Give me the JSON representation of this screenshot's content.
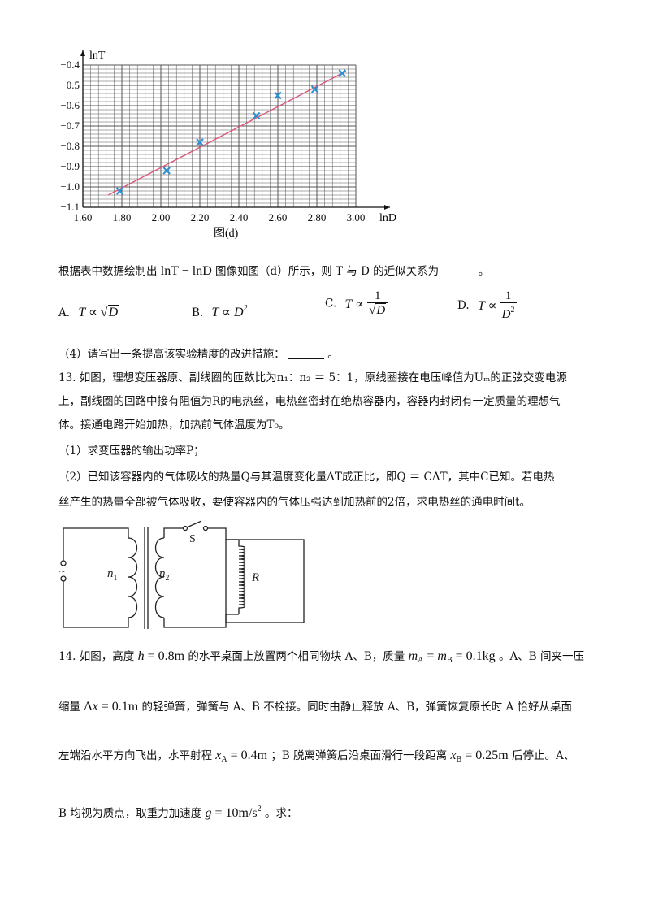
{
  "chart_data": {
    "type": "scatter",
    "title": "",
    "caption": "图(d)",
    "xlabel": "lnD",
    "ylabel": "lnT",
    "xlim": [
      1.6,
      3.0
    ],
    "ylim": [
      -1.1,
      -0.4
    ],
    "xticks": [
      "1.60",
      "1.80",
      "2.00",
      "2.20",
      "2.40",
      "2.60",
      "2.80",
      "3.00"
    ],
    "yticks": [
      "−0.4",
      "−0.5",
      "−0.6",
      "−0.7",
      "−0.8",
      "−0.9",
      "−1.0",
      "−1.1"
    ],
    "xtick_values": [
      1.6,
      1.8,
      2.0,
      2.2,
      2.4,
      2.6,
      2.8,
      3.0
    ],
    "ytick_values": [
      -0.4,
      -0.5,
      -0.6,
      -0.7,
      -0.8,
      -0.9,
      -1.0,
      -1.1
    ],
    "grid": true,
    "points": [
      {
        "x": 1.79,
        "y": -1.02
      },
      {
        "x": 2.03,
        "y": -0.92
      },
      {
        "x": 2.2,
        "y": -0.78
      },
      {
        "x": 2.49,
        "y": -0.65
      },
      {
        "x": 2.6,
        "y": -0.55
      },
      {
        "x": 2.79,
        "y": -0.52
      },
      {
        "x": 2.93,
        "y": -0.44
      }
    ],
    "fit_line": {
      "x": [
        1.73,
        2.95
      ],
      "y": [
        -1.04,
        -0.43
      ]
    },
    "colors": {
      "point": "#2a8fd4",
      "line": "#d8577a",
      "grid": "#555555"
    }
  },
  "q12": {
    "stem_a": "根据表中数据绘制出",
    "stem_math": "lnT − lnD",
    "stem_b": "图像如图（d）所示，则 T 与 D 的近似关系为",
    "stem_end": "。",
    "options": [
      {
        "label": "A.",
        "expr": "T ∝ √D"
      },
      {
        "label": "B.",
        "expr": "T ∝ D²"
      },
      {
        "label": "C.",
        "expr": "T ∝ 1/√D"
      },
      {
        "label": "D.",
        "expr": "T ∝ 1/D²"
      }
    ],
    "part4": "（4）请写出一条提高该实验精度的改进措施：",
    "part4_end": "。"
  },
  "q13": {
    "line1": "13. 如图，理想变压器原、副线圈的匝数比为n₁：n₂ ＝ 5：1，原线圈接在电压峰值为Uₘ的正弦交变电源",
    "line2": "上，副线圈的回路中接有阻值为R的电热丝，电热丝密封在绝热容器内，容器内封闭有一定质量的理想气",
    "line3": "体。接通电路开始加热，加热前气体温度为T₀。",
    "line4": "（1）求变压器的输出功率P；",
    "line5": "（2）已知该容器内的气体吸收的热量Q与其温度变化量ΔT成正比，即Q ＝ CΔT，其中C已知。若电热",
    "line6": "丝产生的热量全部被气体吸收，要使容器内的气体压强达到加热前的2倍，求电热丝的通电时间t。",
    "circuit": {
      "source": "~",
      "n1": "n",
      "n1_sub": "1",
      "n2": "n",
      "n2_sub": "2",
      "switch": "S",
      "resistor": "R"
    }
  },
  "q14": {
    "l1a": "14. 如图，高度",
    "l1m1": "h = 0.8m",
    "l1b": "的水平桌面上放置两个相同物块 A、B，质量",
    "l1m2": "mA = mB = 0.1kg",
    "l1c": "。A、B 间夹一压",
    "l2a": "缩量",
    "l2m": "Δx = 0.1m",
    "l2b": "的轻弹簧，弹簧与 A、B 不栓接。同时由静止释放 A、B，弹簧恢复原长时 A 恰好从桌面",
    "l3a": "左端沿水平方向飞出，水平射程",
    "l3m1": "xA = 0.4m",
    "l3b": "；B 脱离弹簧后沿桌面滑行一段距离",
    "l3m2": "xB = 0.25m",
    "l3c": "后停止。A、",
    "l4a": "B 均视为质点，取重力加速度",
    "l4m": "g = 10m/s²",
    "l4b": "。求："
  }
}
